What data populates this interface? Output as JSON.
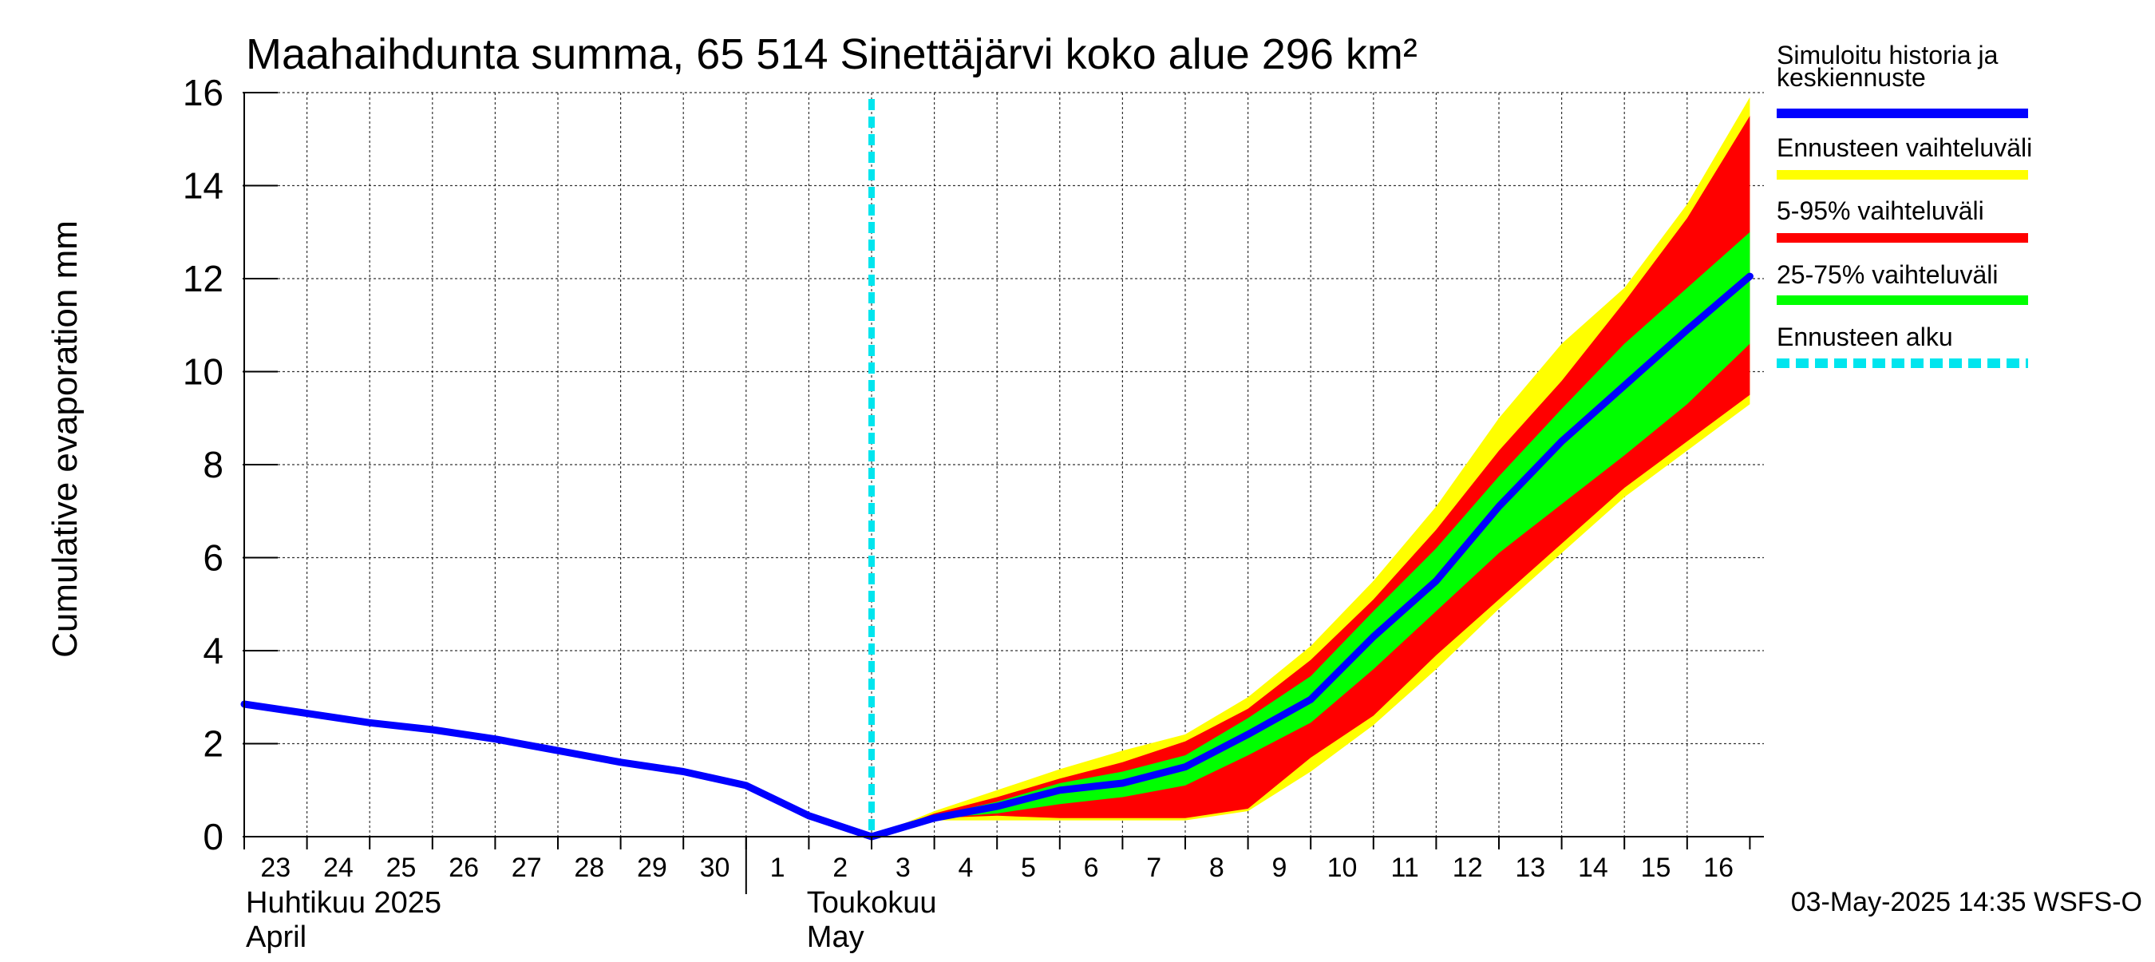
{
  "chart_data": {
    "type": "area",
    "title": "Maahaihdunta summa, 65 514 Sinettäjärvi koko alue 296 km²",
    "ylabel": "Cumulative evaporation   mm",
    "xlabel": "",
    "ylim": [
      0,
      16
    ],
    "xlim": [
      "2025-04-23",
      "2025-05-17"
    ],
    "yticks": [
      0,
      2,
      4,
      6,
      8,
      10,
      12,
      14,
      16
    ],
    "x_tick_labels": [
      "23",
      "24",
      "25",
      "26",
      "27",
      "28",
      "29",
      "30",
      "1",
      "2",
      "3",
      "4",
      "5",
      "6",
      "7",
      "8",
      "9",
      "10",
      "11",
      "12",
      "13",
      "14",
      "15",
      "16"
    ],
    "month_labels": [
      {
        "fi": "Huhtikuu  2025",
        "en": "April",
        "start": "2025-04-23"
      },
      {
        "fi": "Toukokuu",
        "en": "May",
        "start": "2025-05-01"
      }
    ],
    "grid": true,
    "legend_position": "right",
    "forecast_start": "2025-05-03",
    "colors": {
      "history": "#0000ff",
      "range": "#ffff00",
      "p5_95": "#ff0000",
      "p25_75": "#00ff00",
      "forecast_start": "#00e5ee"
    },
    "series": [
      {
        "name": "Simuloitu historia ja keskiennuste",
        "x": [
          "2025-04-23",
          "2025-04-24",
          "2025-04-25",
          "2025-04-26",
          "2025-04-27",
          "2025-04-28",
          "2025-04-29",
          "2025-04-30",
          "2025-05-01",
          "2025-05-02",
          "2025-05-03",
          "2025-05-04",
          "2025-05-05",
          "2025-05-06",
          "2025-05-07",
          "2025-05-08",
          "2025-05-09",
          "2025-05-10",
          "2025-05-11",
          "2025-05-12",
          "2025-05-13",
          "2025-05-14",
          "2025-05-15",
          "2025-05-16",
          "2025-05-17"
        ],
        "values": [
          2.85,
          2.65,
          2.45,
          2.3,
          2.1,
          1.85,
          1.6,
          1.4,
          1.1,
          0.45,
          0.0,
          0.4,
          0.65,
          1.0,
          1.15,
          1.5,
          2.2,
          2.95,
          4.3,
          5.5,
          7.1,
          8.5,
          9.7,
          10.9,
          12.05
        ]
      },
      {
        "name": "Ennusteen vaihteluväli",
        "x": [
          "2025-05-03",
          "2025-05-04",
          "2025-05-05",
          "2025-05-06",
          "2025-05-07",
          "2025-05-08",
          "2025-05-09",
          "2025-05-10",
          "2025-05-11",
          "2025-05-12",
          "2025-05-13",
          "2025-05-14",
          "2025-05-15",
          "2025-05-16",
          "2025-05-17"
        ],
        "upper": [
          0.0,
          0.55,
          1.0,
          1.45,
          1.85,
          2.2,
          3.0,
          4.1,
          5.5,
          7.1,
          9.0,
          10.6,
          11.8,
          13.6,
          15.9
        ],
        "lower": [
          0.0,
          0.35,
          0.35,
          0.35,
          0.35,
          0.35,
          0.55,
          1.4,
          2.4,
          3.6,
          4.9,
          6.1,
          7.3,
          8.3,
          9.3
        ]
      },
      {
        "name": "5-95% vaihteluväli",
        "x": [
          "2025-05-03",
          "2025-05-04",
          "2025-05-05",
          "2025-05-06",
          "2025-05-07",
          "2025-05-08",
          "2025-05-09",
          "2025-05-10",
          "2025-05-11",
          "2025-05-12",
          "2025-05-13",
          "2025-05-14",
          "2025-05-15",
          "2025-05-16",
          "2025-05-17"
        ],
        "upper": [
          0.0,
          0.5,
          0.85,
          1.25,
          1.6,
          2.05,
          2.75,
          3.8,
          5.1,
          6.6,
          8.3,
          9.8,
          11.5,
          13.3,
          15.5
        ],
        "lower": [
          0.0,
          0.4,
          0.45,
          0.4,
          0.4,
          0.4,
          0.6,
          1.7,
          2.6,
          3.9,
          5.1,
          6.3,
          7.5,
          8.5,
          9.5
        ]
      },
      {
        "name": "25-75% vaihteluväli",
        "x": [
          "2025-05-03",
          "2025-05-04",
          "2025-05-05",
          "2025-05-06",
          "2025-05-07",
          "2025-05-08",
          "2025-05-09",
          "2025-05-10",
          "2025-05-11",
          "2025-05-12",
          "2025-05-13",
          "2025-05-14",
          "2025-05-15",
          "2025-05-16",
          "2025-05-17"
        ],
        "upper": [
          0.0,
          0.45,
          0.75,
          1.15,
          1.4,
          1.75,
          2.55,
          3.45,
          4.85,
          6.2,
          7.75,
          9.2,
          10.6,
          11.8,
          13.0
        ],
        "lower": [
          0.0,
          0.4,
          0.5,
          0.7,
          0.85,
          1.1,
          1.75,
          2.45,
          3.6,
          4.85,
          6.1,
          7.15,
          8.2,
          9.3,
          10.6
        ]
      }
    ],
    "legend": [
      {
        "label": "Simuloitu historia ja\nkeskiennuste",
        "color": "#0000ff",
        "style": "solid"
      },
      {
        "label": "Ennusteen vaihteluväli",
        "color": "#ffff00",
        "style": "solid"
      },
      {
        "label": "5-95% vaihteluväli",
        "color": "#ff0000",
        "style": "solid"
      },
      {
        "label": "25-75% vaihteluväli",
        "color": "#00ff00",
        "style": "solid"
      },
      {
        "label": "Ennusteen alku",
        "color": "#00e5ee",
        "style": "dashed"
      }
    ],
    "footer": "03-May-2025 14:35 WSFS-O"
  }
}
